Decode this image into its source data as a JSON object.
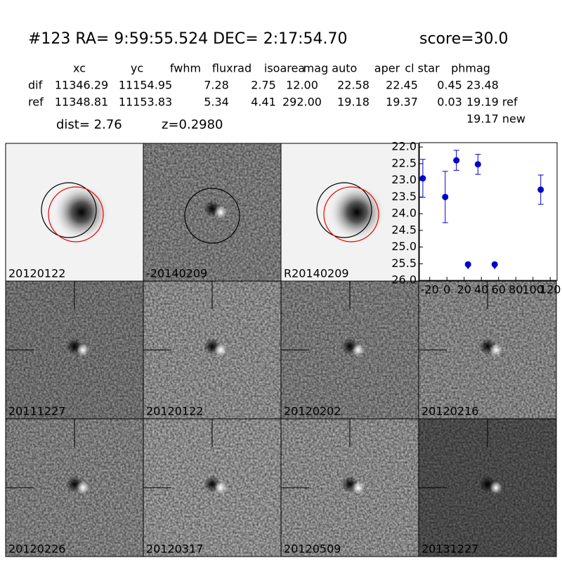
{
  "header": {
    "title": "#123   RA= 9:59:55.524 DEC= 2:17:54.70",
    "score": "score=30.0"
  },
  "table": {
    "columns": [
      "xc",
      "yc",
      "fwhm",
      "fluxrad",
      "isoarea",
      "mag auto",
      "aper",
      "cl star",
      "phmag"
    ],
    "rows": [
      [
        "dif",
        "11346.29",
        "11154.95",
        "7.28",
        "2.75",
        "12.00",
        "22.58",
        "22.45",
        "0.45",
        "23.48"
      ],
      [
        "ref",
        "11348.81",
        "11153.83",
        "5.34",
        "4.41",
        "292.00",
        "19.18",
        "19.37",
        "0.03",
        "19.19 ref"
      ]
    ],
    "extra": "19.17 new"
  },
  "dist": "dist=  2.76",
  "z": "z=0.2980",
  "stamps": [
    {
      "label": "20120122"
    },
    {
      "label": "-20140209"
    },
    {
      "label": "R20140209"
    },
    {
      "label": "20111227"
    },
    {
      "label": "20120122",
      "color": "#ff0000"
    },
    {
      "label": "20120202"
    },
    {
      "label": "20120216"
    },
    {
      "label": "20120226"
    },
    {
      "label": "20120317"
    },
    {
      "label": "20120509"
    },
    {
      "label": "20131227"
    }
  ],
  "chart_data": {
    "type": "scatter",
    "series": [
      {
        "color": "#0000cc",
        "x": [
          -28,
          -2,
          11,
          36,
          109
        ],
        "values": [
          22.94,
          23.5,
          22.4,
          22.52,
          23.28
        ],
        "errors": [
          0.57,
          0.77,
          0.3,
          0.3,
          0.44
        ]
      },
      {
        "color": "#0000cc",
        "marker": "limit",
        "x": [
          24.5,
          55.5
        ],
        "values": [
          25.52,
          25.52
        ]
      }
    ],
    "xlim": [
      -32,
      128
    ],
    "ylim": [
      21.87,
      26.0
    ],
    "y_inverted": true,
    "xticks": [
      -20,
      0,
      20,
      40,
      60,
      80,
      100,
      120
    ],
    "yticks": [
      {
        "value": 22,
        "label": "22.0"
      },
      {
        "value": 22.5,
        "label": "22.5"
      },
      {
        "value": 23,
        "label": "23.0"
      },
      {
        "value": 23.5,
        "label": "23.5"
      },
      {
        "value": 24,
        "label": "24.0"
      },
      {
        "value": 24.5,
        "label": "24.5"
      },
      {
        "value": 25,
        "label": "25.0"
      },
      {
        "value": 25.5,
        "label": "25.5"
      },
      {
        "value": 26,
        "label": "26.0"
      }
    ]
  }
}
